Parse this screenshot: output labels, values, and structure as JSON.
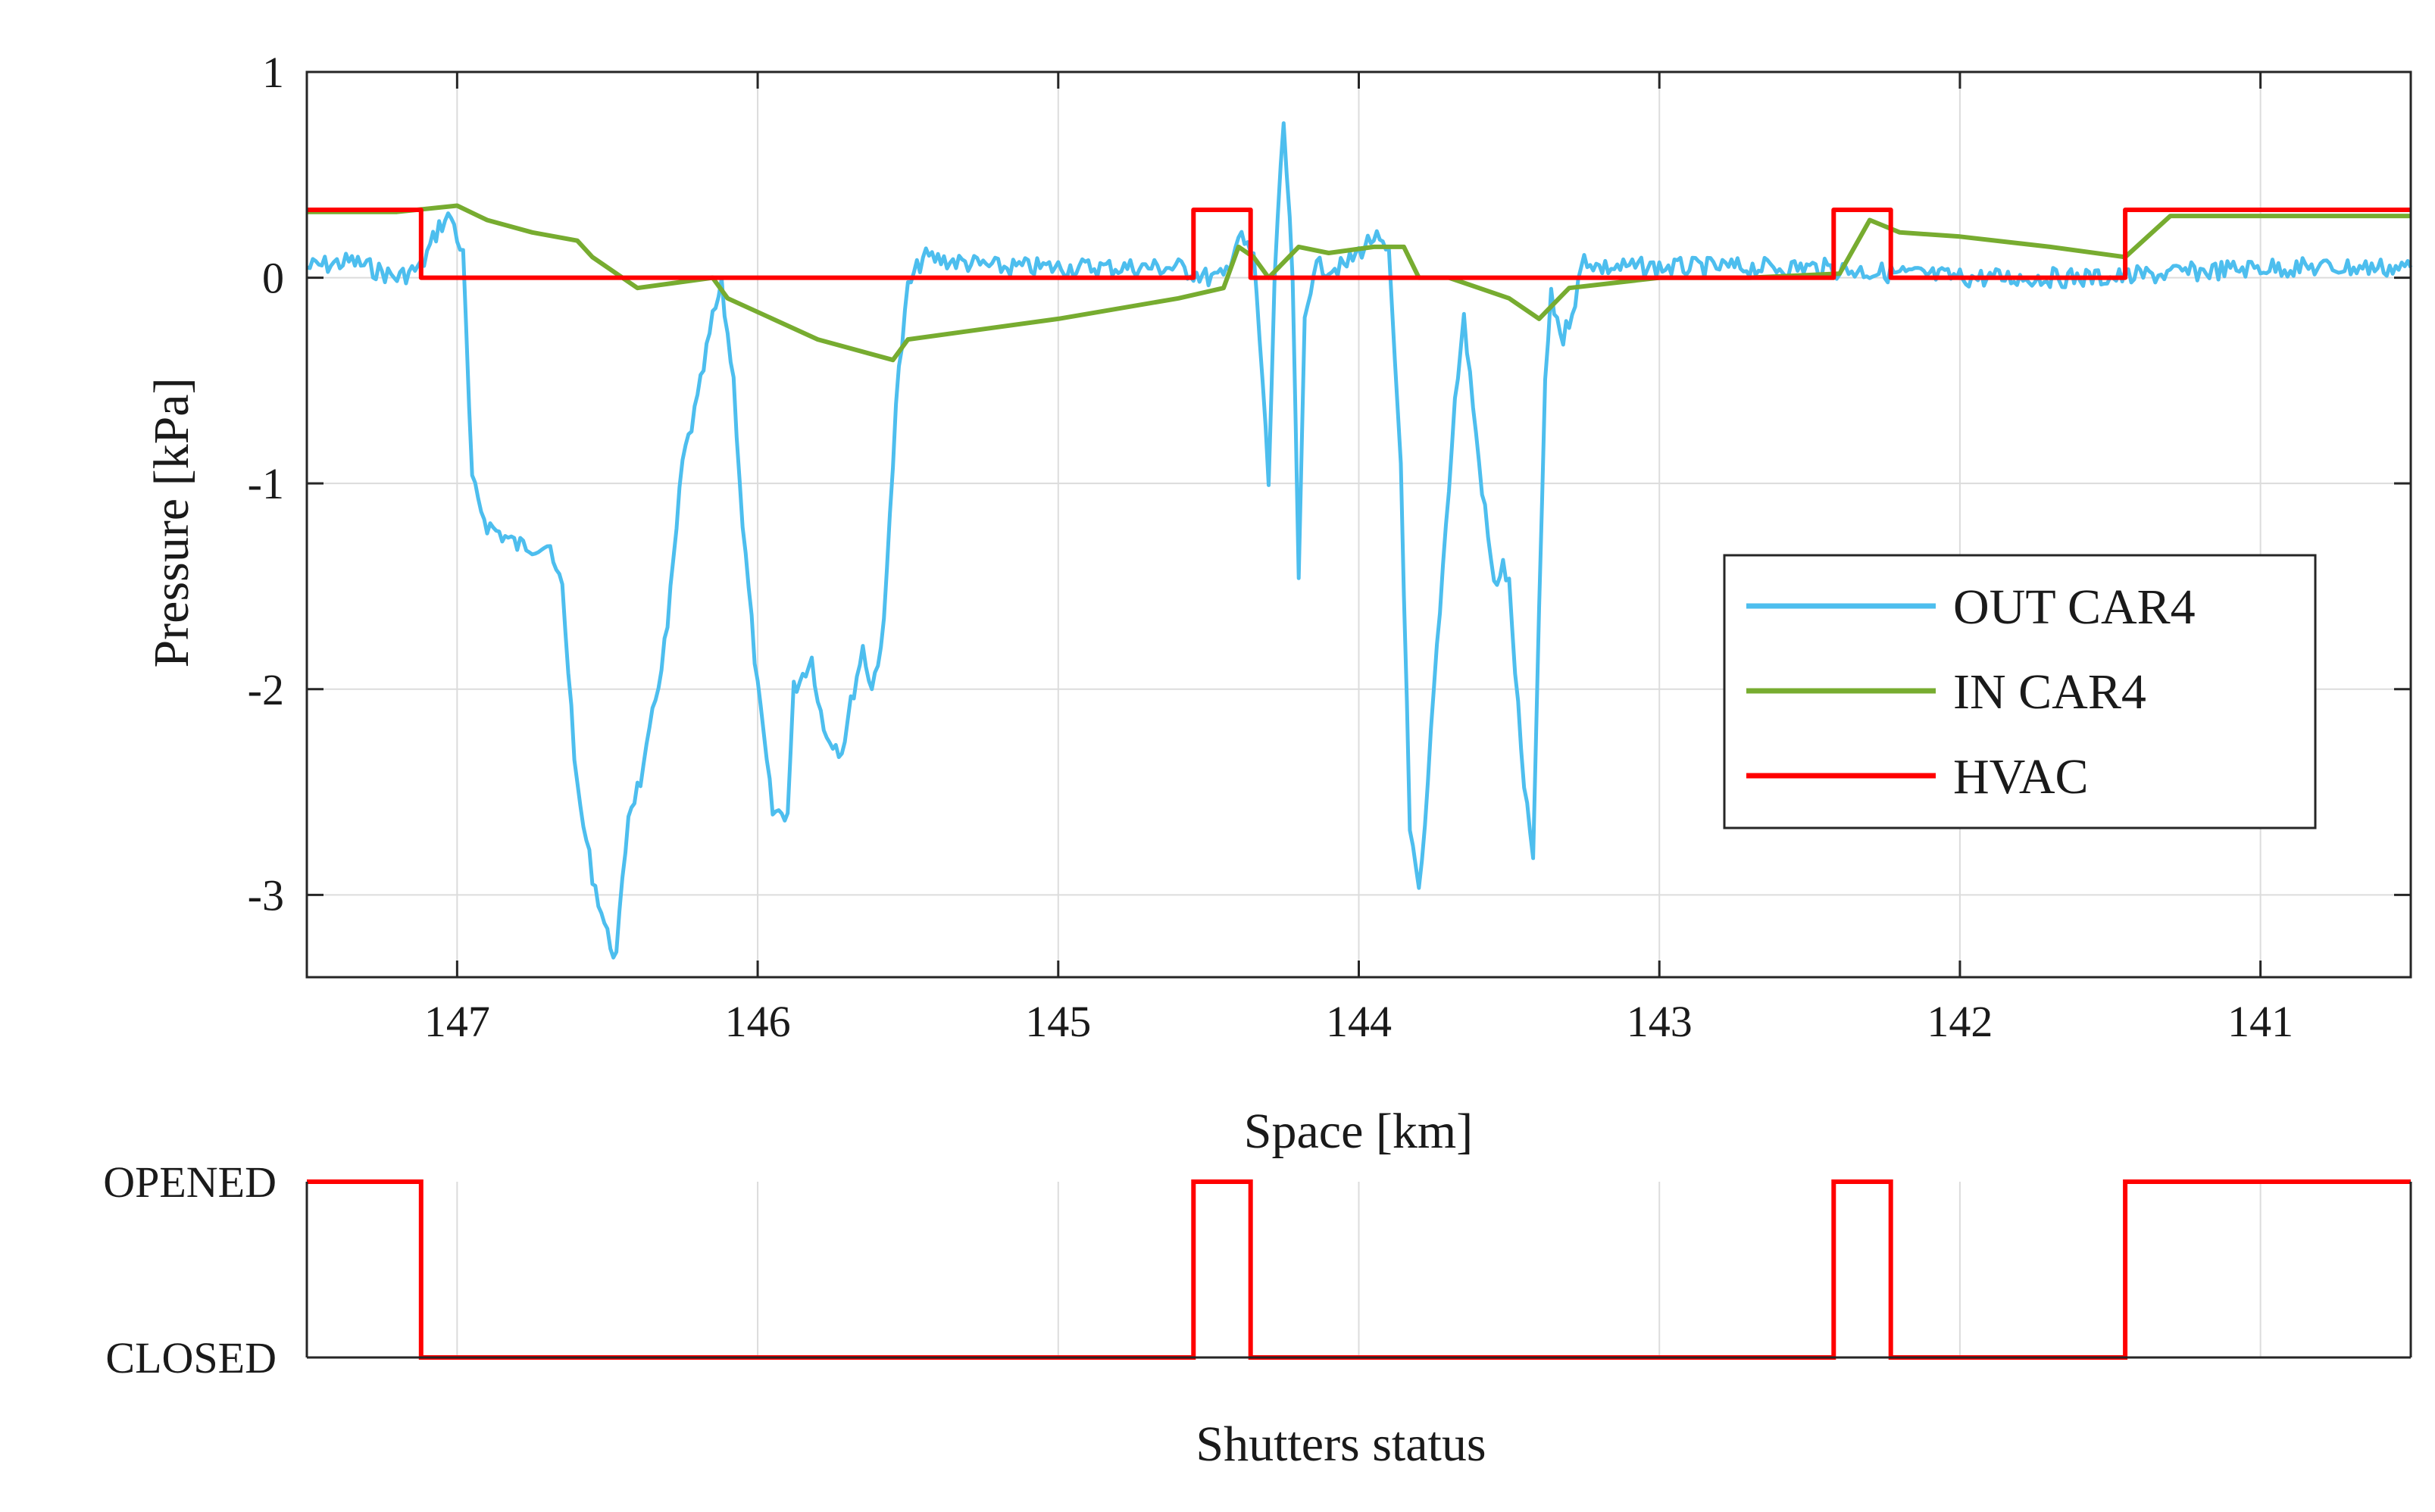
{
  "chart_data": [
    {
      "type": "line",
      "title": "",
      "xlabel": "Space [km]",
      "ylabel": "Pressure [kPa]",
      "xlim": [
        147.5,
        140.5
      ],
      "x_reversed": true,
      "ylim": [
        -3.4,
        1
      ],
      "xticks": [
        147,
        146,
        145,
        144,
        143,
        142,
        141
      ],
      "xtick_labels": [
        "147",
        "146",
        "145",
        "144",
        "143",
        "142",
        "141"
      ],
      "yticks": [
        1,
        0,
        -1,
        -2,
        -3
      ],
      "ytick_labels": [
        "1",
        "0",
        "-1",
        "-2",
        "-3"
      ],
      "grid": true,
      "legend_position": "center-right",
      "series": [
        {
          "name": "OUT CAR4",
          "color": "#4DBEEE",
          "x": [
            147.5,
            147.35,
            147.2,
            147.12,
            147.06,
            147.02,
            146.98,
            146.95,
            146.9,
            146.8,
            146.7,
            146.68,
            146.65,
            146.6,
            146.55,
            146.5,
            146.47,
            146.43,
            146.38,
            146.3,
            146.25,
            146.2,
            146.15,
            146.12,
            146.08,
            146.05,
            146.0,
            145.95,
            145.9,
            145.88,
            145.82,
            145.78,
            145.72,
            145.68,
            145.65,
            145.62,
            145.58,
            145.54,
            145.5,
            145.45,
            145.2,
            145.0,
            144.8,
            144.6,
            144.5,
            144.45,
            144.4,
            144.35,
            144.32,
            144.3,
            144.28,
            144.25,
            144.22,
            144.2,
            144.18,
            144.15,
            144.05,
            143.95,
            143.9,
            143.86,
            143.83,
            143.8,
            143.78,
            143.75,
            143.72,
            143.68,
            143.65,
            143.6,
            143.55,
            143.52,
            143.5,
            143.45,
            143.42,
            143.38,
            143.36,
            143.32,
            143.28,
            143.25,
            143.2,
            143.0,
            142.5,
            142.0,
            141.5,
            141.0,
            140.5
          ],
          "y": [
            0.05,
            0.08,
            0.0,
            0.05,
            0.25,
            0.3,
            0.1,
            -1.0,
            -1.2,
            -1.3,
            -1.3,
            -1.4,
            -1.5,
            -2.5,
            -2.9,
            -3.2,
            -3.3,
            -2.6,
            -2.4,
            -1.7,
            -0.9,
            -0.6,
            -0.2,
            -0.05,
            -0.5,
            -1.2,
            -2.0,
            -2.6,
            -2.6,
            -2.0,
            -1.85,
            -2.2,
            -2.3,
            -2.0,
            -1.8,
            -2.0,
            -1.7,
            -0.6,
            -0.05,
            0.1,
            0.05,
            0.05,
            0.05,
            0.05,
            0.0,
            0.0,
            0.2,
            0.1,
            -0.5,
            -1.0,
            0.0,
            0.75,
            0.0,
            -1.5,
            -0.2,
            0.05,
            0.05,
            0.2,
            0.1,
            -0.9,
            -2.7,
            -3.0,
            -2.7,
            -2.0,
            -1.4,
            -0.6,
            -0.2,
            -0.9,
            -1.5,
            -1.4,
            -1.5,
            -2.5,
            -2.8,
            -0.5,
            -0.1,
            -0.3,
            -0.1,
            0.1,
            0.05,
            0.05,
            0.05,
            0.0,
            0.0,
            0.05,
            0.05
          ]
        },
        {
          "name": "IN CAR4",
          "color": "#77AC30",
          "x": [
            147.5,
            147.2,
            147.0,
            146.9,
            146.75,
            146.6,
            146.55,
            146.4,
            146.15,
            146.1,
            145.8,
            145.55,
            145.5,
            145.0,
            144.6,
            144.45,
            144.4,
            144.35,
            144.3,
            144.2,
            144.1,
            143.95,
            143.85,
            143.8,
            143.7,
            143.5,
            143.4,
            143.3,
            143.0,
            142.7,
            142.4,
            142.3,
            142.2,
            142.0,
            141.7,
            141.45,
            141.3,
            141.0,
            140.5
          ],
          "y": [
            0.32,
            0.32,
            0.35,
            0.28,
            0.22,
            0.18,
            0.1,
            -0.05,
            0.0,
            -0.1,
            -0.3,
            -0.4,
            -0.3,
            -0.2,
            -0.1,
            -0.05,
            0.15,
            0.1,
            0.0,
            0.15,
            0.12,
            0.15,
            0.15,
            0.0,
            0.0,
            -0.1,
            -0.2,
            -0.05,
            0.0,
            0.0,
            0.02,
            0.28,
            0.22,
            0.2,
            0.15,
            0.1,
            0.3,
            0.3,
            0.3
          ]
        },
        {
          "name": "HVAC",
          "color": "#FF0000",
          "x": [
            147.5,
            147.12,
            147.12,
            144.55,
            144.55,
            144.36,
            144.36,
            142.42,
            142.42,
            142.23,
            142.23,
            141.45,
            141.45,
            140.5
          ],
          "y": [
            0.33,
            0.33,
            0.0,
            0.0,
            0.33,
            0.33,
            0.0,
            0.0,
            0.33,
            0.33,
            0.0,
            0.0,
            0.33,
            0.33
          ]
        }
      ]
    },
    {
      "type": "line",
      "title": "",
      "xlabel": "Shutters status",
      "ylabel": "",
      "xlim": [
        147.5,
        140.5
      ],
      "x_reversed": true,
      "ylim": [
        0,
        1
      ],
      "yticks": [
        1,
        0
      ],
      "ytick_labels": [
        "OPENED",
        "CLOSED"
      ],
      "grid": true,
      "series": [
        {
          "name": "Shutters",
          "color": "#FF0000",
          "x": [
            147.5,
            147.12,
            147.12,
            144.55,
            144.55,
            144.36,
            144.36,
            142.42,
            142.42,
            142.23,
            142.23,
            141.45,
            141.45,
            140.5
          ],
          "y": [
            1,
            1,
            0,
            0,
            1,
            1,
            0,
            0,
            1,
            1,
            0,
            0,
            1,
            1
          ]
        }
      ]
    }
  ]
}
